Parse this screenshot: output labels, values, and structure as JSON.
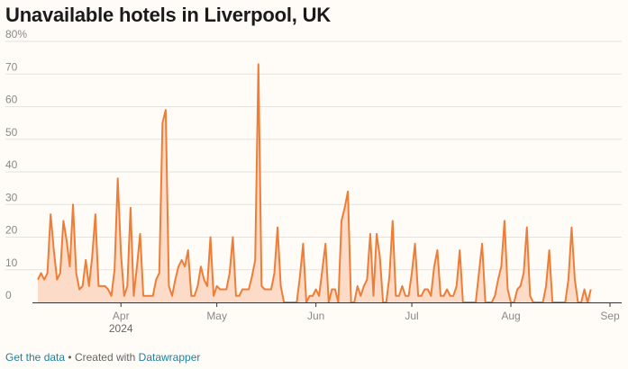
{
  "title": "Unavailable hotels in Liverpool, UK",
  "footer": {
    "data_link": "Get the data",
    "separator": "•",
    "created_with": "Created with",
    "tool_link": "Datawrapper"
  },
  "colors": {
    "line": "#ee7e37",
    "fill": "#fbd2b8",
    "grid": "#e6e2dc",
    "axis": "#333333"
  },
  "chart_data": {
    "type": "area",
    "title": "Unavailable hotels in Liverpool, UK",
    "xlabel": "",
    "ylabel": "",
    "ylim": [
      0,
      80
    ],
    "ytick_values": [
      0,
      10,
      20,
      30,
      40,
      50,
      60,
      70,
      80
    ],
    "ytick_labels": [
      "0",
      "10",
      "20",
      "30",
      "40",
      "50",
      "60",
      "70",
      "80%"
    ],
    "x_start_date": "2024-03-06",
    "x_end_date": "2024-09-01",
    "xticks": [
      {
        "day": 26,
        "label": "Apr"
      },
      {
        "day": 56,
        "label": "May"
      },
      {
        "day": 87,
        "label": "Jun"
      },
      {
        "day": 117,
        "label": "Jul"
      },
      {
        "day": 148,
        "label": "Aug"
      },
      {
        "day": 179,
        "label": "Sep"
      }
    ],
    "year_label": {
      "day": 26,
      "label": "2024"
    },
    "series": [
      {
        "name": "Unavailable hotels (%)",
        "values": [
          7,
          9,
          7,
          9,
          27,
          16,
          7,
          9,
          25,
          19,
          11,
          30,
          9,
          4,
          5,
          13,
          5,
          14,
          27,
          5,
          5,
          5,
          4,
          2,
          10,
          38,
          15,
          2,
          5,
          29,
          2,
          11,
          21,
          2,
          2,
          2,
          2,
          7,
          9,
          55,
          59,
          5,
          2,
          7,
          11,
          13,
          11,
          16,
          2,
          2,
          5,
          11,
          7,
          5,
          20,
          2,
          5,
          4,
          4,
          4,
          9,
          20,
          2,
          2,
          4,
          4,
          4,
          8,
          13,
          73,
          5,
          4,
          4,
          4,
          9,
          23,
          5,
          0,
          0,
          0,
          0,
          0,
          8,
          18,
          0,
          2,
          2,
          4,
          2,
          10,
          18,
          0,
          4,
          4,
          0,
          25,
          29,
          34,
          0,
          0,
          5,
          2,
          5,
          7,
          21,
          2,
          21,
          14,
          0,
          0,
          8,
          25,
          2,
          2,
          5,
          2,
          2,
          9,
          18,
          2,
          2,
          4,
          4,
          2,
          11,
          16,
          2,
          2,
          4,
          2,
          2,
          5,
          16,
          0,
          0,
          0,
          0,
          0,
          9,
          18,
          0,
          0,
          0,
          2,
          7,
          11,
          25,
          4,
          0,
          0,
          4,
          5,
          9,
          23,
          2,
          0,
          0,
          0,
          0,
          5,
          16,
          0,
          0,
          0,
          0,
          0,
          7,
          23,
          7,
          0,
          0,
          4,
          0,
          4
        ]
      }
    ]
  }
}
